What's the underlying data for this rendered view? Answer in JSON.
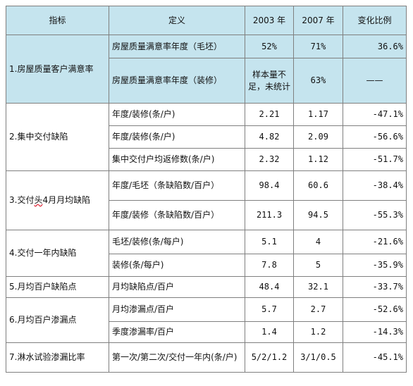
{
  "header": {
    "indicator": "指标",
    "definition": "定义",
    "y2003": "2003 年",
    "y2007": "2007 年",
    "change": "变化比例"
  },
  "rows": [
    {
      "indicator": "1.房屋质量客户满意率",
      "items": [
        {
          "definition": "房屋质量满意率年度（毛坯）",
          "v2003": "52%",
          "v2007": "71%",
          "change": "36.6%"
        },
        {
          "definition": "房屋质量满意率年度（装修）",
          "v2003": "样本量不足，未统计",
          "v2007": "63%",
          "change": "——"
        }
      ]
    },
    {
      "indicator": "2.集中交付缺陷",
      "items": [
        {
          "definition": "年度/装修(条/户)",
          "v2003": "2.21",
          "v2007": "1.17",
          "change": "-47.1%"
        },
        {
          "definition": "年度/装修(条/户)",
          "v2003": "4.82",
          "v2007": "2.09",
          "change": "-56.6%"
        },
        {
          "definition": "集中交付户均返修数(条/户)",
          "v2003": "2.32",
          "v2007": "1.12",
          "change": "-51.7%"
        }
      ]
    },
    {
      "indicator_prefix": "3.交付",
      "indicator_typo": "头",
      "indicator_suffix": "4月月均缺陷",
      "items": [
        {
          "definition": "年度/毛坯（条缺陷数/百户）",
          "v2003": "98.4",
          "v2007": "60.6",
          "change": "-38.4%"
        },
        {
          "definition": "年度/装修（条缺陷数/百户）",
          "v2003": "211.3",
          "v2007": "94.5",
          "change": "-55.3%"
        }
      ]
    },
    {
      "indicator": "4.交付一年内缺陷",
      "items": [
        {
          "definition": "毛坯/装修(条/每户)",
          "v2003": "5.1",
          "v2007": "4",
          "change": "-21.6%"
        },
        {
          "definition": "装修(条/每户)",
          "v2003": "7.8",
          "v2007": "5",
          "change": "-35.9%"
        }
      ]
    },
    {
      "indicator": "5.月均百户缺陷点",
      "items": [
        {
          "definition": "月均缺陷点/百户",
          "v2003": "48.4",
          "v2007": "32.1",
          "change": "-33.7%"
        }
      ]
    },
    {
      "indicator": "6.月均百户渗漏点",
      "items": [
        {
          "definition": "月均渗漏点/百户",
          "v2003": "5.7",
          "v2007": "2.7",
          "change": "-52.6%"
        },
        {
          "definition": "季度渗漏率/百户",
          "v2003": "1.4",
          "v2007": "1.2",
          "change": "-14.3%"
        }
      ]
    },
    {
      "indicator": "7.淋水试验渗漏比率",
      "items": [
        {
          "definition": "第一次/第二次/交付一年内(条/户)",
          "v2003": "5/2/1.2",
          "v2007": "3/1/0.5",
          "change": "-45.1%"
        }
      ]
    }
  ]
}
